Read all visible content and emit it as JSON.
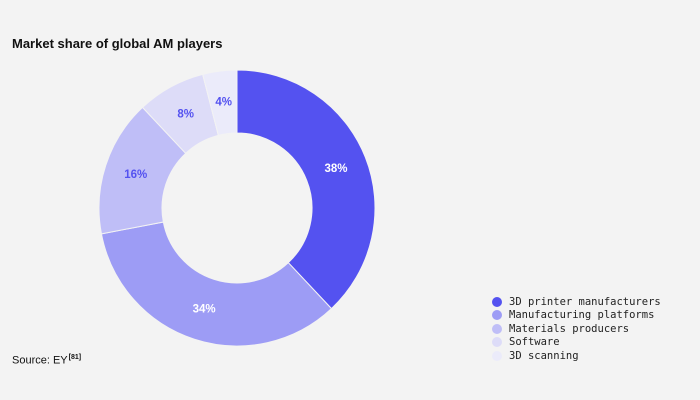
{
  "chart_data": {
    "type": "pie",
    "title": "Market share of global AM players",
    "categories": [
      "3D printer manufacturers",
      "Manufacturing platforms",
      "Materials producers",
      "Software",
      "3D scanning"
    ],
    "values": [
      38,
      34,
      16,
      8,
      4
    ],
    "labels": [
      "38%",
      "34%",
      "16%",
      "8%",
      "4%"
    ],
    "colors": [
      "#5452f0",
      "#9d9cf5",
      "#bfbef7",
      "#dddcf8",
      "#ebebfa"
    ],
    "label_colors": [
      "#ffffff",
      "#ffffff",
      "#5452f0",
      "#5452f0",
      "#5452f0"
    ],
    "hole": "donut",
    "legend_position": "bottom-right"
  },
  "source": {
    "text": "Source: EY",
    "ref": "[81]"
  }
}
